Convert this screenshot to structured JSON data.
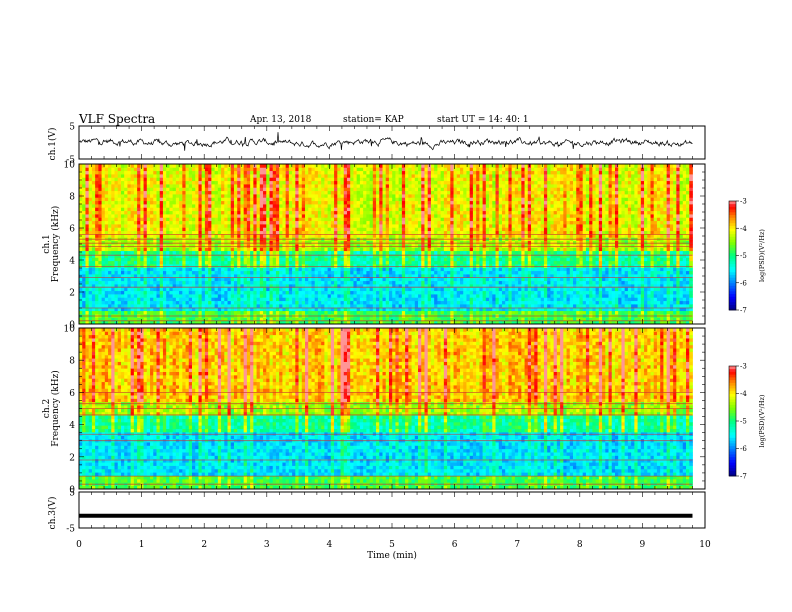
{
  "header": {
    "title": "VLF Spectra",
    "date": "Apr. 13, 2018",
    "station": "station= KAP",
    "start": "start  UT =   14: 40: 1"
  },
  "chart_data": [
    {
      "type": "line",
      "panel": "ch1-waveform",
      "ylabel": "ch.1(V)",
      "ylim": [
        -5,
        5
      ],
      "yticks": [
        "5",
        "-5"
      ],
      "xlim": [
        0,
        10
      ],
      "series": [
        {
          "values_description_visible": false,
          "x_end": 9.8
        }
      ]
    },
    {
      "type": "heatmap",
      "panel": "ch1-spectrogram",
      "ylabel": "ch.1 Frequency (kHz)",
      "ylim": [
        0,
        10
      ],
      "yticks": [
        "0",
        "2",
        "4",
        "6",
        "8",
        "10"
      ],
      "xlim": [
        0,
        9.8
      ],
      "colorbar": {
        "label": "log(PSD)(V²/Hz)",
        "range": [
          -7,
          -3
        ],
        "ticks": [
          "-3",
          "-4",
          "-5",
          "-6",
          "-7"
        ]
      },
      "bands_khz": [
        0.2,
        0.5,
        1.0,
        2.3,
        2.9,
        3.6,
        4.3,
        4.85,
        5.05,
        5.3,
        5.6
      ]
    },
    {
      "type": "heatmap",
      "panel": "ch2-spectrogram",
      "ylabel": "ch.2 Frequency (kHz)",
      "ylim": [
        0,
        10
      ],
      "yticks": [
        "0",
        "2",
        "4",
        "6",
        "8",
        "10"
      ],
      "xlim": [
        0,
        9.8
      ],
      "colorbar": {
        "label": "log(PSD)(V²/Hz)",
        "range": [
          -7,
          -3
        ],
        "ticks": [
          "-3",
          "-4",
          "-5",
          "-6",
          "-7"
        ]
      },
      "bands_khz": [
        0.3,
        0.8,
        1.8,
        3.0,
        3.4,
        4.6,
        5.0,
        5.3,
        6.0
      ]
    },
    {
      "type": "line",
      "panel": "ch3-waveform",
      "ylabel": "ch.3(V)",
      "ylim": [
        -5,
        5
      ],
      "yticks": [
        "5",
        "-5"
      ],
      "xlim": [
        0,
        10
      ],
      "series": [
        {
          "constant_value": -1.6,
          "x_end": 9.8
        }
      ],
      "xlabel": "Time  (min)",
      "xticks": [
        "0",
        "1",
        "2",
        "3",
        "4",
        "5",
        "6",
        "7",
        "8",
        "9",
        "10"
      ]
    }
  ],
  "colors": {
    "cbar": [
      "#000080",
      "#0000ff",
      "#0080ff",
      "#00ffff",
      "#00ff80",
      "#80ff00",
      "#ffff00",
      "#ff8000",
      "#ff0000",
      "#ffffff"
    ]
  }
}
